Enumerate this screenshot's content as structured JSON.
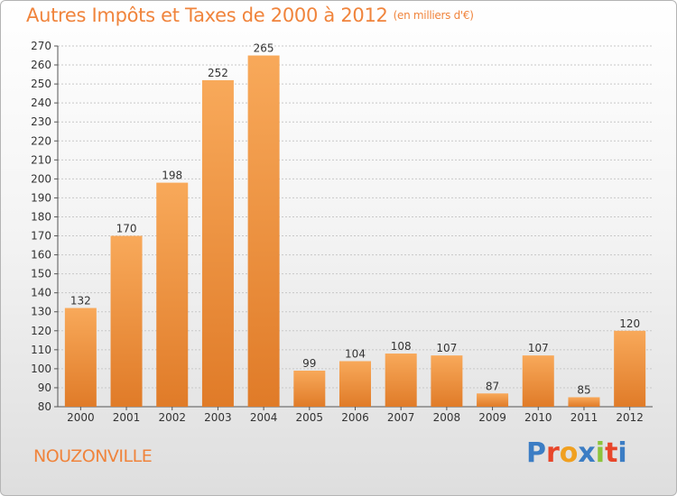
{
  "header": {
    "title": "Autres Impôts et Taxes de 2000 à 2012",
    "subtitle": "(en milliers d'€)"
  },
  "footer": {
    "commune": "NOUZONVILLE",
    "logo_text": "Proxiti"
  },
  "colors": {
    "accent": "#f0843c",
    "bar_light": "#f8a95a",
    "bar_dark": "#e07b28",
    "grid": "#c8c8c8",
    "logo_letters": [
      "#3c7dc4",
      "#e8462a",
      "#f0a020",
      "#3c7dc4",
      "#8cc43c",
      "#e8462a",
      "#3c7dc4"
    ]
  },
  "chart_data": {
    "type": "bar",
    "title": "Autres Impôts et Taxes de 2000 à 2012",
    "subtitle": "(en milliers d'€)",
    "categories": [
      "2000",
      "2001",
      "2002",
      "2003",
      "2004",
      "2005",
      "2006",
      "2007",
      "2008",
      "2009",
      "2010",
      "2011",
      "2012"
    ],
    "values": [
      132,
      170,
      198,
      252,
      265,
      99,
      104,
      108,
      107,
      87,
      107,
      85,
      120
    ],
    "ylim": [
      80,
      270
    ],
    "yticks": [
      80,
      90,
      100,
      110,
      120,
      130,
      140,
      150,
      160,
      170,
      180,
      190,
      200,
      210,
      220,
      230,
      240,
      250,
      260,
      270
    ],
    "grid": true,
    "data_labels": true
  }
}
